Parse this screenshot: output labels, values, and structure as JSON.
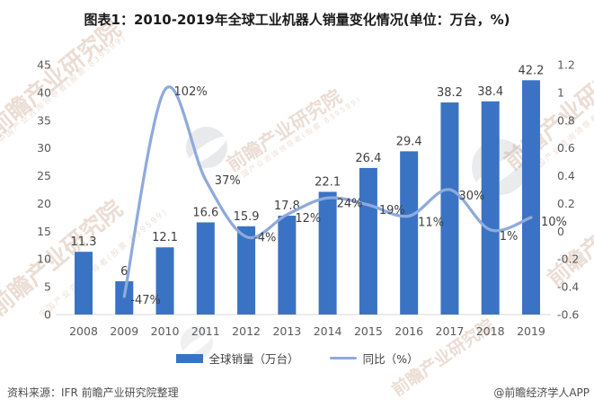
{
  "title": "图表1：2010-2019年全球工业机器人销量变化情况(单位：万台，%)",
  "chart_data": {
    "type": "combo-bar-line",
    "categories": [
      "2008",
      "2009",
      "2010",
      "2011",
      "2012",
      "2013",
      "2014",
      "2015",
      "2016",
      "2017",
      "2018",
      "2019"
    ],
    "series": [
      {
        "name": "全球销量（万台）",
        "type": "bar",
        "axis": "left",
        "color": "#3A73C4",
        "values": [
          11.3,
          6,
          12.1,
          16.6,
          15.9,
          17.8,
          22.1,
          26.4,
          29.4,
          38.2,
          38.4,
          42.2
        ],
        "labels": [
          "11.3",
          "6",
          "12.1",
          "16.6",
          "15.9",
          "17.8",
          "22.1",
          "26.4",
          "29.4",
          "38.2",
          "38.4",
          "42.2"
        ]
      },
      {
        "name": "同比（%）",
        "type": "line",
        "axis": "right",
        "color": "#8FAADC",
        "values": [
          null,
          -0.47,
          1.02,
          0.37,
          -0.04,
          0.12,
          0.24,
          0.19,
          0.11,
          0.3,
          0.01,
          0.1
        ],
        "labels": [
          null,
          "-47%",
          "102%",
          "37%",
          "-4%",
          "12%",
          "24%",
          "19%",
          "11%",
          "30%",
          "1%",
          "10%"
        ]
      }
    ],
    "left_axis": {
      "min": 0,
      "max": 45,
      "step": 5,
      "ticks": [
        "45",
        "40",
        "35",
        "30",
        "25",
        "20",
        "15",
        "10",
        "5",
        "0"
      ]
    },
    "right_axis": {
      "min": -0.6,
      "max": 1.2,
      "step": 0.2,
      "ticks": [
        "1.2",
        "1",
        "0.8",
        "0.6",
        "0.4",
        "0.2",
        "0",
        "-0.2",
        "-0.4",
        "-0.6"
      ]
    },
    "grid": false,
    "legend_position": "bottom"
  },
  "footer": {
    "source": "资料来源：IFR 前瞻产业研究院整理",
    "credit": "@前瞻经济学人APP"
  },
  "watermark": {
    "brand": "前瞻产业研究院",
    "tagline": "中国产业咨询领导者(股票:839599)"
  },
  "colors": {
    "bar": "#3A73C4",
    "line": "#8FAADC",
    "label": "#404040",
    "axis": "#595959",
    "baseline": "#D9D9D9"
  }
}
